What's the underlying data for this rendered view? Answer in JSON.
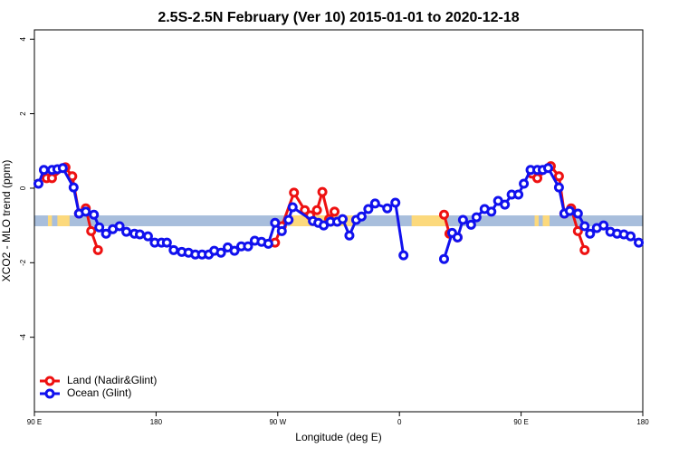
{
  "chart_data": {
    "type": "line",
    "title": "2.5S-2.5N February (Ver 10)   2015-01-01 to 2020-12-18",
    "xlabel": "Longitude (deg E)",
    "ylabel": "XCO2 - MLO trend (ppm)",
    "xlim": [
      90,
      540
    ],
    "ylim": [
      -6.0,
      4.25
    ],
    "xticks": [
      {
        "value": 90,
        "label": "90 E"
      },
      180,
      {
        "value": 270,
        "label": "90 W"
      },
      {
        "value": 360,
        "label": "0"
      },
      {
        "value": 450,
        "label": "90 E"
      },
      {
        "value": 540,
        "label": "180"
      }
    ],
    "yticks": [
      -4,
      -2,
      0,
      2,
      4
    ],
    "band": [
      -1.02,
      -0.73
    ],
    "band_color": "#a8bedc",
    "land_color": "#fcd97c",
    "land_ranges": [
      [
        100,
        103
      ],
      [
        107,
        116
      ],
      [
        279,
        326
      ],
      [
        369,
        394
      ],
      [
        460,
        463
      ],
      [
        466,
        471
      ]
    ],
    "legend": "bottom-left",
    "series": [
      {
        "name": "Land (Nadir&Glint)",
        "color": "#ee1111",
        "x": [
          99,
          103,
          113,
          118,
          123,
          128,
          132,
          137,
          null,
          268,
          273,
          282,
          290,
          294,
          299,
          303,
          308,
          312,
          null,
          393,
          397,
          403,
          null,
          458,
          462,
          472,
          478,
          482,
          487,
          492,
          497
        ],
        "values": [
          0.27,
          0.27,
          0.56,
          0.32,
          -0.68,
          -0.54,
          -1.15,
          -1.66,
          null,
          -1.46,
          -1.02,
          -0.12,
          -0.59,
          -0.73,
          -0.59,
          -0.1,
          -0.83,
          -0.63,
          null,
          -0.71,
          -1.22,
          -1.32,
          null,
          0.39,
          0.27,
          0.59,
          0.32,
          -0.68,
          -0.54,
          -1.15,
          -1.66
        ]
      },
      {
        "name": "Ocean (Glint)",
        "color": "#1111ee",
        "x": [
          93,
          97,
          103,
          107,
          111,
          119,
          123,
          128,
          134,
          138,
          143,
          148,
          153,
          158,
          164,
          168,
          174,
          179,
          184,
          188,
          193,
          199,
          204,
          209,
          214,
          219,
          223,
          228,
          233,
          238,
          243,
          248,
          253,
          258,
          263,
          268,
          273,
          278,
          281,
          296,
          300,
          304,
          309,
          314,
          318,
          323,
          328,
          332,
          337,
          342,
          351,
          357,
          363,
          null,
          393,
          399,
          403,
          407,
          413,
          417,
          423,
          428,
          433,
          438,
          443,
          448,
          452,
          457,
          462,
          466,
          470,
          478,
          482,
          486,
          492,
          497,
          501,
          506,
          511,
          516,
          521,
          526,
          531,
          537
        ],
        "values": [
          0.12,
          0.49,
          0.49,
          0.51,
          0.54,
          0.02,
          -0.68,
          -0.63,
          -0.71,
          -1.05,
          -1.22,
          -1.1,
          -1.02,
          -1.17,
          -1.22,
          -1.24,
          -1.29,
          -1.46,
          -1.46,
          -1.46,
          -1.66,
          -1.71,
          -1.73,
          -1.78,
          -1.78,
          -1.78,
          -1.68,
          -1.73,
          -1.59,
          -1.68,
          -1.56,
          -1.56,
          -1.41,
          -1.44,
          -1.49,
          -0.93,
          -1.15,
          -0.85,
          -0.51,
          -0.88,
          -0.93,
          -1.0,
          -0.9,
          -0.9,
          -0.83,
          -1.27,
          -0.85,
          -0.76,
          -0.56,
          -0.41,
          -0.54,
          -0.39,
          -1.8,
          null,
          -1.9,
          -1.2,
          -1.32,
          -0.85,
          -0.98,
          -0.78,
          -0.56,
          -0.63,
          -0.34,
          -0.44,
          -0.17,
          -0.17,
          0.12,
          0.49,
          0.49,
          0.49,
          0.54,
          0.02,
          -0.68,
          -0.61,
          -0.68,
          -1.02,
          -1.22,
          -1.07,
          -1.0,
          -1.17,
          -1.22,
          -1.24,
          -1.29,
          -1.46
        ]
      }
    ]
  }
}
